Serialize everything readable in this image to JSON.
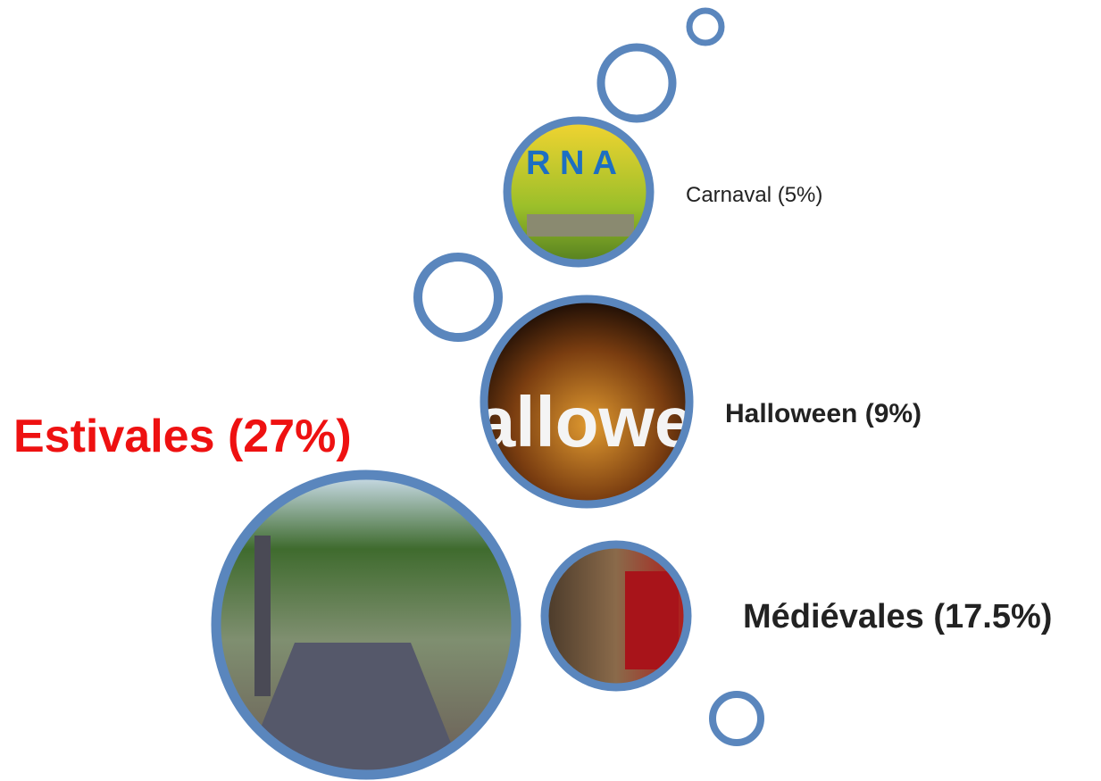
{
  "items": [
    {
      "label": "Carnaval (5%)"
    },
    {
      "label": "Halloween (9%)"
    },
    {
      "label": "Estivales (27%)"
    },
    {
      "label": "Médiévales (17.5%)"
    }
  ]
}
